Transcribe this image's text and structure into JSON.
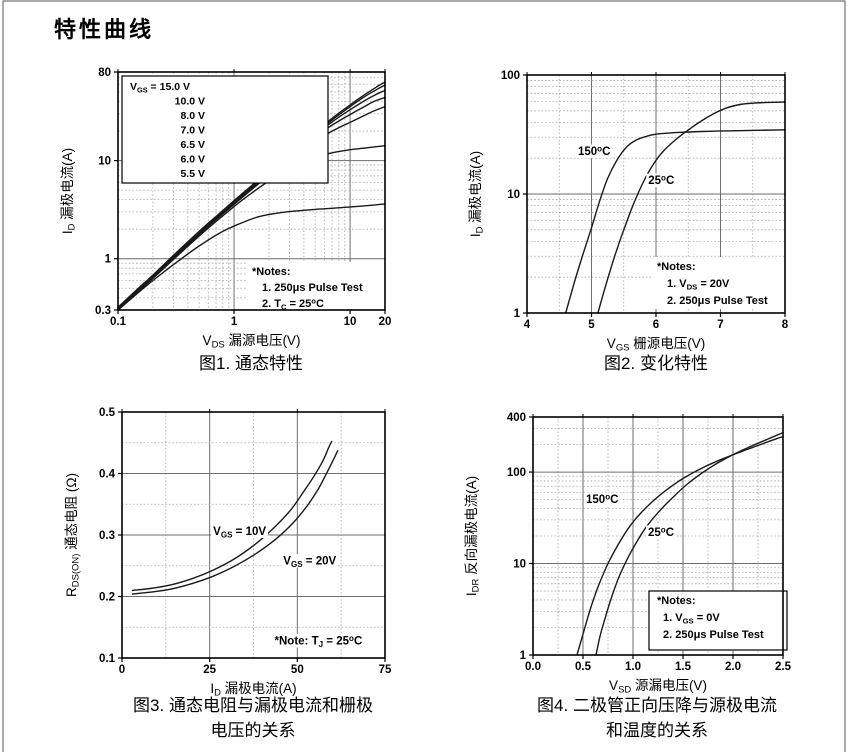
{
  "page": {
    "heading": "特性曲线"
  },
  "chart_data": [
    {
      "id": "fig1",
      "type": "line",
      "title": "图1. 通态特性",
      "caption_lines": [
        "图1. 通态特性"
      ],
      "x_axis": {
        "label": "V_{DS} 漏源电压(V)",
        "scale": "log",
        "min": 0.1,
        "max": 20,
        "tick_values": [
          0.1,
          1,
          10,
          20
        ],
        "tick_labels": [
          "0.1",
          "1",
          "10",
          "20"
        ]
      },
      "y_axis": {
        "label": "I_{D} 漏极电流(A)",
        "scale": "log",
        "min": 0.3,
        "max": 80,
        "tick_values": [
          0.3,
          1,
          10,
          80
        ],
        "tick_labels": [
          "0.3",
          "1",
          "10",
          "80"
        ]
      },
      "legend": {
        "first_line": "V_{GS} = 15.0 V",
        "other_lines": [
          "10.0 V",
          "8.0 V",
          "7.0 V",
          "6.5 V",
          "6.0 V",
          "5.5 V"
        ]
      },
      "notes": {
        "title": "*Notes:",
        "items": [
          "1. 250μs Pulse Test",
          "2. T_{C} = 25^{o}C"
        ],
        "boxed": false
      },
      "annotations": [],
      "series": [
        {
          "name": "V_{GS} = 15.0 V",
          "points": [
            [
              0.1,
              0.32
            ],
            [
              0.15,
              0.5
            ],
            [
              0.2,
              0.68
            ],
            [
              0.3,
              1.08
            ],
            [
              0.5,
              1.9
            ],
            [
              0.7,
              2.7
            ],
            [
              1,
              3.9
            ],
            [
              1.5,
              5.9
            ],
            [
              2,
              7.9
            ],
            [
              3,
              11.8
            ],
            [
              4,
              15.8
            ],
            [
              5,
              19.5
            ],
            [
              7,
              27
            ],
            [
              10,
              37
            ],
            [
              13,
              46
            ],
            [
              16,
              54
            ],
            [
              18,
              59
            ],
            [
              20,
              63
            ]
          ]
        },
        {
          "name": "V_{GS} = 10.0 V",
          "points": [
            [
              0.1,
              0.315
            ],
            [
              0.2,
              0.665
            ],
            [
              0.3,
              1.06
            ],
            [
              0.5,
              1.86
            ],
            [
              1,
              3.82
            ],
            [
              2,
              7.75
            ],
            [
              3,
              11.5
            ],
            [
              5,
              19
            ],
            [
              7,
              26
            ],
            [
              10,
              35.5
            ],
            [
              13,
              44
            ],
            [
              16,
              51
            ],
            [
              20,
              59
            ]
          ]
        },
        {
          "name": "V_{GS} = 8.0 V",
          "points": [
            [
              0.1,
              0.31
            ],
            [
              0.2,
              0.655
            ],
            [
              0.5,
              1.83
            ],
            [
              1,
              3.75
            ],
            [
              2,
              7.6
            ],
            [
              3,
              11.2
            ],
            [
              5,
              18.3
            ],
            [
              7,
              24.8
            ],
            [
              10,
              33
            ],
            [
              13,
              40
            ],
            [
              16,
              46
            ],
            [
              20,
              52
            ]
          ]
        },
        {
          "name": "V_{GS} = 7.0 V",
          "points": [
            [
              0.1,
              0.305
            ],
            [
              0.2,
              0.645
            ],
            [
              0.5,
              1.8
            ],
            [
              1,
              3.68
            ],
            [
              2,
              7.4
            ],
            [
              3,
              10.9
            ],
            [
              5,
              17.5
            ],
            [
              7,
              23
            ],
            [
              10,
              29.5
            ],
            [
              13,
              35
            ],
            [
              16,
              40
            ],
            [
              20,
              44
            ]
          ]
        },
        {
          "name": "V_{GS} = 6.5 V",
          "points": [
            [
              0.1,
              0.3
            ],
            [
              0.2,
              0.635
            ],
            [
              0.5,
              1.76
            ],
            [
              1,
              3.58
            ],
            [
              2,
              7.1
            ],
            [
              3,
              10.3
            ],
            [
              5,
              15.8
            ],
            [
              7,
              20
            ],
            [
              10,
              24.5
            ],
            [
              13,
              28.5
            ],
            [
              16,
              32
            ],
            [
              20,
              35.5
            ]
          ]
        },
        {
          "name": "V_{GS} = 6.0 V",
          "points": [
            [
              0.1,
              0.3
            ],
            [
              0.2,
              0.63
            ],
            [
              0.5,
              1.7
            ],
            [
              1,
              3.4
            ],
            [
              1.5,
              4.9
            ],
            [
              2,
              6.2
            ],
            [
              3,
              8.3
            ],
            [
              4,
              9.8
            ],
            [
              5,
              10.8
            ],
            [
              7,
              12
            ],
            [
              10,
              12.9
            ],
            [
              14,
              13.5
            ],
            [
              20,
              14.2
            ]
          ]
        },
        {
          "name": "V_{GS} = 5.5 V",
          "points": [
            [
              0.1,
              0.3
            ],
            [
              0.2,
              0.6
            ],
            [
              0.4,
              1.12
            ],
            [
              0.6,
              1.55
            ],
            [
              0.8,
              1.9
            ],
            [
              1,
              2.15
            ],
            [
              1.5,
              2.6
            ],
            [
              2,
              2.82
            ],
            [
              3,
              3.02
            ],
            [
              5,
              3.18
            ],
            [
              8,
              3.3
            ],
            [
              12,
              3.42
            ],
            [
              16,
              3.52
            ],
            [
              20,
              3.62
            ]
          ]
        }
      ]
    },
    {
      "id": "fig2",
      "type": "line",
      "title": "图2. 变化特性",
      "caption_lines": [
        "图2. 变化特性"
      ],
      "x_axis": {
        "label": "V_{GS} 栅源电压(V)",
        "scale": "linear",
        "min": 4,
        "max": 8,
        "grid_minor": 0.5,
        "grid_major": 1,
        "tick_values": [
          4,
          5,
          6,
          7,
          8
        ],
        "tick_labels": [
          "4",
          "5",
          "6",
          "7",
          "8"
        ]
      },
      "y_axis": {
        "label": "I_{D} 漏极电流(A)",
        "scale": "log",
        "min": 1,
        "max": 100,
        "tick_values": [
          1,
          10,
          100
        ],
        "tick_labels": [
          "1",
          "10",
          "100"
        ]
      },
      "notes": {
        "title": "*Notes:",
        "items": [
          "1. V_{DS} = 20V",
          "2. 250μs Pulse Test"
        ],
        "boxed": false
      },
      "annotations": [
        {
          "text": "150^{o}C",
          "x": 4.79,
          "y": 21.3
        },
        {
          "text": "25^{o}C",
          "x": 5.88,
          "y": 12.1
        }
      ],
      "series": [
        {
          "name": "150°C",
          "points": [
            [
              4.6,
              1
            ],
            [
              4.72,
              1.7
            ],
            [
              4.85,
              2.9
            ],
            [
              5.0,
              5.2
            ],
            [
              5.12,
              8.5
            ],
            [
              5.25,
              13.5
            ],
            [
              5.4,
              19.5
            ],
            [
              5.55,
              25
            ],
            [
              5.7,
              28.5
            ],
            [
              5.85,
              30.5
            ],
            [
              6.0,
              31.8
            ],
            [
              6.3,
              32.8
            ],
            [
              6.7,
              33.5
            ],
            [
              7.2,
              34
            ],
            [
              8,
              34.6
            ]
          ]
        },
        {
          "name": "25°C",
          "points": [
            [
              5.1,
              1
            ],
            [
              5.22,
              1.7
            ],
            [
              5.35,
              2.9
            ],
            [
              5.5,
              5
            ],
            [
              5.65,
              8.2
            ],
            [
              5.8,
              12.5
            ],
            [
              5.95,
              17.5
            ],
            [
              6.1,
              22.5
            ],
            [
              6.3,
              28.5
            ],
            [
              6.5,
              34.5
            ],
            [
              6.7,
              41
            ],
            [
              6.9,
              47.5
            ],
            [
              7.1,
              53
            ],
            [
              7.3,
              56.5
            ],
            [
              7.5,
              58
            ],
            [
              7.75,
              58.8
            ],
            [
              8,
              59.2
            ]
          ]
        }
      ]
    },
    {
      "id": "fig3",
      "type": "line",
      "title": "图3. 通态电阻与漏极电流和栅极电压的关系",
      "caption_lines": [
        "图3. 通态电阻与漏极电流和栅极",
        "电压的关系"
      ],
      "x_axis": {
        "label": "I_{D} 漏极电流(A)",
        "scale": "linear",
        "min": 0,
        "max": 75,
        "grid_minor": 12.5,
        "grid_major": 25,
        "tick_values": [
          0,
          25,
          50,
          75
        ],
        "tick_labels": [
          "0",
          "25",
          "50",
          "75"
        ]
      },
      "y_axis": {
        "label": "R_{DS(ON)} 通态电阻 (Ω)",
        "scale": "linear",
        "min": 0.1,
        "max": 0.5,
        "grid_minor": 0.05,
        "grid_major": 0.1,
        "tick_values": [
          0.1,
          0.2,
          0.3,
          0.4,
          0.5
        ],
        "tick_labels": [
          "0.1",
          "0.2",
          "0.3",
          "0.4",
          "0.5"
        ]
      },
      "annotations": [
        {
          "text": "V_{GS} = 10V",
          "x": 26,
          "y": 0.3
        },
        {
          "text": "V_{GS} = 20V",
          "x": 46,
          "y": 0.252
        },
        {
          "text": "*Note: T_{J} = 25^{o}C",
          "x": 43.5,
          "y": 0.122
        }
      ],
      "series": [
        {
          "name": "V_{GS} = 10V",
          "points": [
            [
              3,
              0.21
            ],
            [
              8,
              0.213
            ],
            [
              14,
              0.219
            ],
            [
              20,
              0.229
            ],
            [
              26,
              0.243
            ],
            [
              32,
              0.261
            ],
            [
              38,
              0.285
            ],
            [
              43,
              0.31
            ],
            [
              48,
              0.34
            ],
            [
              52,
              0.372
            ],
            [
              55,
              0.398
            ],
            [
              57.5,
              0.423
            ],
            [
              59,
              0.443
            ],
            [
              59.8,
              0.452
            ]
          ]
        },
        {
          "name": "V_{GS} = 20V",
          "points": [
            [
              3,
              0.204
            ],
            [
              8,
              0.207
            ],
            [
              14,
              0.212
            ],
            [
              20,
              0.221
            ],
            [
              26,
              0.233
            ],
            [
              32,
              0.249
            ],
            [
              38,
              0.269
            ],
            [
              44,
              0.294
            ],
            [
              49,
              0.321
            ],
            [
              53,
              0.349
            ],
            [
              56,
              0.375
            ],
            [
              58.5,
              0.402
            ],
            [
              60.5,
              0.425
            ],
            [
              61.5,
              0.437
            ]
          ]
        }
      ]
    },
    {
      "id": "fig4",
      "type": "line",
      "title": "图4. 二极管正向压降与源极电流和温度的关系",
      "caption_lines": [
        "图4. 二极管正向压降与源极电流",
        "和温度的关系"
      ],
      "x_axis": {
        "label": "V_{SD} 源漏电压(V)",
        "scale": "linear",
        "min": 0,
        "max": 2.5,
        "grid_minor": 0.25,
        "grid_major": 0.5,
        "tick_values": [
          0,
          0.5,
          1.0,
          1.5,
          2.0,
          2.5
        ],
        "tick_labels": [
          "0.0",
          "0.5",
          "1.0",
          "1.5",
          "2.0",
          "2.5"
        ]
      },
      "y_axis": {
        "label": "I_{DR} 反向漏极电流(A)",
        "scale": "log",
        "min": 1,
        "max": 400,
        "tick_values": [
          1,
          10,
          100,
          400
        ],
        "tick_labels": [
          "1",
          "10",
          "100",
          "400"
        ]
      },
      "notes": {
        "title": "*Notes:",
        "items": [
          "1. V_{GS} = 0V",
          "2. 250μs Pulse Test"
        ],
        "boxed": true
      },
      "annotations": [
        {
          "text": "150^{o}C",
          "x": 0.53,
          "y": 46
        },
        {
          "text": "25^{o}C",
          "x": 1.15,
          "y": 20
        }
      ],
      "series": [
        {
          "name": "150°C",
          "points": [
            [
              0.44,
              1
            ],
            [
              0.49,
              1.55
            ],
            [
              0.54,
              2.4
            ],
            [
              0.6,
              3.9
            ],
            [
              0.67,
              6.3
            ],
            [
              0.75,
              10
            ],
            [
              0.85,
              16
            ],
            [
              0.95,
              24
            ],
            [
              1.05,
              33
            ],
            [
              1.18,
              46
            ],
            [
              1.32,
              62
            ],
            [
              1.5,
              85
            ],
            [
              1.7,
              112
            ],
            [
              1.9,
              140
            ],
            [
              2.1,
              170
            ],
            [
              2.3,
              205
            ],
            [
              2.5,
              245
            ]
          ]
        },
        {
          "name": "25°C",
          "points": [
            [
              0.63,
              1
            ],
            [
              0.67,
              1.6
            ],
            [
              0.72,
              2.5
            ],
            [
              0.78,
              4.1
            ],
            [
              0.85,
              6.7
            ],
            [
              0.93,
              10.5
            ],
            [
              1.02,
              16
            ],
            [
              1.12,
              24
            ],
            [
              1.25,
              36
            ],
            [
              1.4,
              53
            ],
            [
              1.55,
              75
            ],
            [
              1.75,
              108
            ],
            [
              1.95,
              145
            ],
            [
              2.15,
              185
            ],
            [
              2.35,
              230
            ],
            [
              2.5,
              270
            ]
          ]
        }
      ]
    }
  ]
}
